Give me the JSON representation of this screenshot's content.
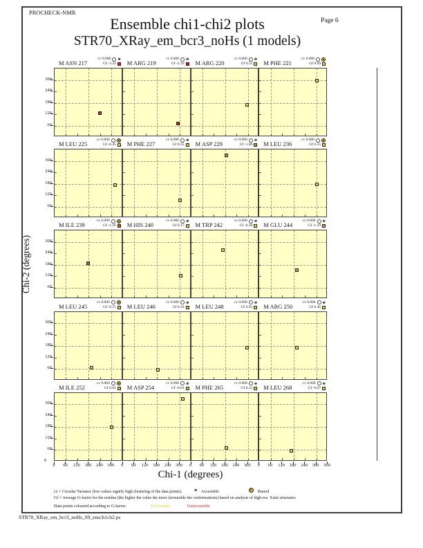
{
  "page": {
    "app_label": "PROCHECK-NMR",
    "title": "Ensemble chi1-chi2 plots",
    "subtitle": "STR70_XRay_em_bcr3_noHs (1 models)",
    "page_label": "Page 6",
    "footer_filename": "STR70_XRay_em_bcr3_noHs_09_ensch1ch2.ps"
  },
  "axes": {
    "x_label": "Chi-1 (degrees)",
    "y_label": "Chi-2 (degrees)",
    "x_ticks": [
      0,
      60,
      120,
      180,
      240,
      300
    ],
    "x_final_tick": 360,
    "y_ticks": [
      300,
      240,
      180,
      120,
      60
    ],
    "y_origin_tick": 0,
    "domain": [
      0,
      360
    ]
  },
  "labels": {
    "cv_prefix": "cv",
    "gf_prefix": "Gf"
  },
  "colors": {
    "plot_bg": "#ffffc6",
    "grid": "#9a9a8c",
    "favourable": "#e8d22e",
    "unfavourable": "#cc2020",
    "intermediate": "#d4922e"
  },
  "legend": {
    "line1": "cv = Circular Variance (low values signify high clustering of the data points).",
    "accessible_label": "Accessible",
    "buried_label": "Buried",
    "line2": "Gf = Average G-factor for the residue (the higher the value the more favourable the conformations) based on analysis of high-res. Xstal structures",
    "line3": "Data points coloured according to G-factor:",
    "favourable_label": "Favourable",
    "unfavourable_label": "Unfavourable"
  },
  "chart_data": {
    "type": "scatter",
    "grid_style": "dashed gridlines at 60, 180, 300 on both axes",
    "x_range": [
      0,
      360
    ],
    "y_range": [
      0,
      360
    ],
    "columns_per_row": 4,
    "subplots": [
      {
        "label": "M ASN 217",
        "cv": "0.000",
        "gf": "-3.33",
        "color": "#cc2020",
        "buried": false,
        "point": [
          240,
          125
        ]
      },
      {
        "label": "M ARG 219",
        "cv": "0.000",
        "gf": "-2.16",
        "color": "#cc2020",
        "buried": false,
        "point": [
          290,
          72
        ]
      },
      {
        "label": "M ARG 220",
        "cv": "0.000",
        "gf": "0.52",
        "color": "#e8d22e",
        "buried": false,
        "point": [
          295,
          170
        ]
      },
      {
        "label": "M PHE 221",
        "cv": "0.000",
        "gf": "0.69",
        "color": "#e8d22e",
        "buried": true,
        "point": [
          305,
          297
        ]
      },
      {
        "label": "M LEU 225",
        "cv": "0.000",
        "gf": "-0.45",
        "color": "#e8d22e",
        "buried": true,
        "point": [
          320,
          172
        ]
      },
      {
        "label": "M PHE 227",
        "cv": "0.000",
        "gf": "0.55",
        "color": "#e8d22e",
        "buried": false,
        "point": [
          301,
          92
        ]
      },
      {
        "label": "M ASP 229",
        "cv": "0.000",
        "gf": "-1.00",
        "color": "#d4922e",
        "buried": false,
        "point": [
          186,
          330
        ]
      },
      {
        "label": "M LEU 236",
        "cv": "0.000",
        "gf": "0.55",
        "color": "#e8d22e",
        "buried": true,
        "point": [
          304,
          177
        ]
      },
      {
        "label": "M ILE 239",
        "cv": "0.000",
        "gf": "-1.16",
        "color": "#cc5c20",
        "buried": true,
        "point": [
          176,
          188
        ]
      },
      {
        "label": "M HIS 240",
        "cv": "0.000",
        "gf": "0.17",
        "color": "#e8d22e",
        "buried": false,
        "point": [
          304,
          122
        ]
      },
      {
        "label": "M TRP 242",
        "cv": "0.000",
        "gf": "-0.30",
        "color": "#e8d22e",
        "buried": false,
        "point": [
          167,
          257
        ]
      },
      {
        "label": "M GLU 244",
        "cv": "0.000",
        "gf": "-1.19",
        "color": "#d4922e",
        "buried": false,
        "point": [
          196,
          151
        ]
      },
      {
        "label": "M LEU 245",
        "cv": "0.000",
        "gf": "-0.25",
        "color": "#e8d22e",
        "buried": true,
        "point": [
          196,
          66
        ]
      },
      {
        "label": "M LEU 246",
        "cv": "0.000",
        "gf": "0.16",
        "color": "#e8d22e",
        "buried": false,
        "point": [
          185,
          54
        ]
      },
      {
        "label": "M LEU 248",
        "cv": "0.000",
        "gf": "0.91",
        "color": "#e8d22e",
        "buried": false,
        "point": [
          295,
          173
        ]
      },
      {
        "label": "M ARG 250",
        "cv": "0.000",
        "gf": "0.46",
        "color": "#e8d22e",
        "buried": false,
        "point": [
          199,
          173
        ]
      },
      {
        "label": "M ILE 252",
        "cv": "0.000",
        "gf": "0.62",
        "color": "#e8d22e",
        "buried": true,
        "point": [
          301,
          180
        ]
      },
      {
        "label": "M ASP 254",
        "cv": "0.000",
        "gf": "-0.01",
        "color": "#e8d22e",
        "buried": false,
        "point": [
          315,
          330
        ]
      },
      {
        "label": "M PHE 265",
        "cv": "0.000",
        "gf": "0.32",
        "color": "#e8d22e",
        "buried": false,
        "point": [
          186,
          71
        ]
      },
      {
        "label": "M LEU 268",
        "cv": "0.000",
        "gf": "-0.07",
        "color": "#e8d22e",
        "buried": false,
        "point": [
          168,
          56
        ]
      }
    ]
  }
}
